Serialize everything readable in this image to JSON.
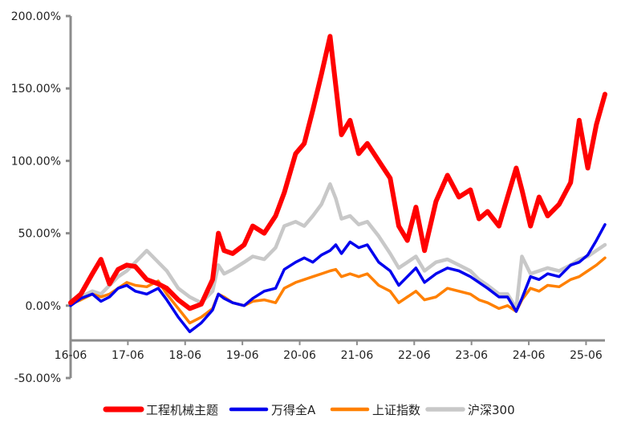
{
  "chart_data": {
    "type": "line",
    "title": "",
    "xlabel": "",
    "ylabel": "",
    "ylim": [
      -0.5,
      2.0
    ],
    "y_ticks": [
      2.0,
      1.5,
      1.0,
      0.5,
      0.0,
      -0.5
    ],
    "y_tick_labels": [
      "200.00%",
      "150.00%",
      "100.00%",
      "50.00%",
      "0.00%",
      "-50.00%"
    ],
    "x_tick_labels": [
      "16-06",
      "17-06",
      "18-06",
      "19-06",
      "20-06",
      "21-06",
      "22-06",
      "23-06",
      "24-06",
      "25-06"
    ],
    "x_ticks": [
      2016.42,
      2017.42,
      2018.42,
      2019.42,
      2020.42,
      2021.42,
      2022.42,
      2023.42,
      2024.42,
      2025.42
    ],
    "xlim": [
      2016.42,
      2025.75
    ],
    "x_axis_crosses_y": -0.24,
    "grid": false,
    "legend_position": "bottom",
    "series": [
      {
        "name": "工程机械主题",
        "color": "#ff0000",
        "x": [
          2016.42,
          2016.6,
          2016.8,
          2016.95,
          2017.1,
          2017.25,
          2017.4,
          2017.55,
          2017.75,
          2017.95,
          2018.1,
          2018.3,
          2018.5,
          2018.7,
          2018.9,
          2019.0,
          2019.1,
          2019.25,
          2019.45,
          2019.6,
          2019.8,
          2020.0,
          2020.15,
          2020.35,
          2020.5,
          2020.65,
          2020.8,
          2020.95,
          2021.05,
          2021.15,
          2021.3,
          2021.45,
          2021.6,
          2021.8,
          2022.0,
          2022.15,
          2022.3,
          2022.45,
          2022.6,
          2022.8,
          2023.0,
          2023.2,
          2023.4,
          2023.55,
          2023.7,
          2023.9,
          2024.05,
          2024.2,
          2024.3,
          2024.45,
          2024.6,
          2024.75,
          2024.95,
          2025.15,
          2025.3,
          2025.45,
          2025.6,
          2025.75
        ],
        "values": [
          0.02,
          0.08,
          0.22,
          0.32,
          0.15,
          0.25,
          0.28,
          0.27,
          0.18,
          0.15,
          0.12,
          0.04,
          -0.02,
          0.01,
          0.18,
          0.5,
          0.38,
          0.36,
          0.42,
          0.55,
          0.5,
          0.62,
          0.78,
          1.05,
          1.12,
          1.35,
          1.6,
          1.86,
          1.52,
          1.18,
          1.28,
          1.05,
          1.12,
          1.0,
          0.88,
          0.55,
          0.45,
          0.68,
          0.38,
          0.72,
          0.9,
          0.75,
          0.8,
          0.6,
          0.65,
          0.55,
          0.75,
          0.95,
          0.8,
          0.55,
          0.75,
          0.62,
          0.7,
          0.85,
          1.28,
          0.95,
          1.25,
          1.46
        ]
      },
      {
        "name": "万得全A",
        "color": "#0000ee",
        "x": [
          2016.42,
          2016.6,
          2016.8,
          2016.95,
          2017.1,
          2017.25,
          2017.4,
          2017.55,
          2017.75,
          2017.95,
          2018.1,
          2018.3,
          2018.5,
          2018.7,
          2018.9,
          2019.0,
          2019.1,
          2019.25,
          2019.45,
          2019.6,
          2019.8,
          2020.0,
          2020.15,
          2020.35,
          2020.5,
          2020.65,
          2020.8,
          2020.95,
          2021.05,
          2021.15,
          2021.3,
          2021.45,
          2021.6,
          2021.8,
          2022.0,
          2022.15,
          2022.3,
          2022.45,
          2022.6,
          2022.8,
          2023.0,
          2023.2,
          2023.4,
          2023.55,
          2023.7,
          2023.9,
          2024.05,
          2024.2,
          2024.3,
          2024.45,
          2024.6,
          2024.75,
          2024.95,
          2025.15,
          2025.3,
          2025.45,
          2025.6,
          2025.75
        ],
        "values": [
          0.0,
          0.05,
          0.08,
          0.03,
          0.06,
          0.12,
          0.14,
          0.1,
          0.08,
          0.12,
          0.04,
          -0.08,
          -0.18,
          -0.12,
          -0.03,
          0.08,
          0.05,
          0.02,
          0.0,
          0.05,
          0.1,
          0.12,
          0.25,
          0.3,
          0.33,
          0.3,
          0.35,
          0.38,
          0.42,
          0.36,
          0.44,
          0.4,
          0.42,
          0.3,
          0.24,
          0.14,
          0.2,
          0.26,
          0.16,
          0.22,
          0.26,
          0.24,
          0.2,
          0.16,
          0.12,
          0.06,
          0.06,
          -0.04,
          0.05,
          0.2,
          0.18,
          0.22,
          0.2,
          0.28,
          0.3,
          0.35,
          0.45,
          0.56
        ]
      },
      {
        "name": "上证指数",
        "color": "#ff8000",
        "x": [
          2016.42,
          2016.6,
          2016.8,
          2016.95,
          2017.1,
          2017.25,
          2017.4,
          2017.55,
          2017.75,
          2017.95,
          2018.1,
          2018.3,
          2018.5,
          2018.7,
          2018.9,
          2019.0,
          2019.1,
          2019.25,
          2019.45,
          2019.6,
          2019.8,
          2020.0,
          2020.15,
          2020.35,
          2020.5,
          2020.65,
          2020.8,
          2020.95,
          2021.05,
          2021.15,
          2021.3,
          2021.45,
          2021.6,
          2021.8,
          2022.0,
          2022.15,
          2022.3,
          2022.45,
          2022.6,
          2022.8,
          2023.0,
          2023.2,
          2023.4,
          2023.55,
          2023.7,
          2023.9,
          2024.05,
          2024.2,
          2024.3,
          2024.45,
          2024.6,
          2024.75,
          2024.95,
          2025.15,
          2025.3,
          2025.45,
          2025.6,
          2025.75
        ],
        "values": [
          0.01,
          0.04,
          0.08,
          0.06,
          0.08,
          0.12,
          0.16,
          0.14,
          0.13,
          0.17,
          0.08,
          -0.02,
          -0.12,
          -0.08,
          -0.02,
          0.08,
          0.06,
          0.02,
          0.0,
          0.03,
          0.04,
          0.02,
          0.12,
          0.16,
          0.18,
          0.2,
          0.22,
          0.24,
          0.25,
          0.2,
          0.22,
          0.2,
          0.22,
          0.14,
          0.1,
          0.02,
          0.06,
          0.1,
          0.04,
          0.06,
          0.12,
          0.1,
          0.08,
          0.04,
          0.02,
          -0.02,
          0.0,
          -0.04,
          0.04,
          0.12,
          0.1,
          0.14,
          0.13,
          0.18,
          0.2,
          0.24,
          0.28,
          0.33
        ]
      },
      {
        "name": "沪深300",
        "color": "#c8c8c8",
        "x": [
          2016.42,
          2016.6,
          2016.8,
          2016.95,
          2017.1,
          2017.25,
          2017.4,
          2017.55,
          2017.75,
          2017.95,
          2018.1,
          2018.3,
          2018.5,
          2018.7,
          2018.9,
          2019.0,
          2019.1,
          2019.25,
          2019.45,
          2019.6,
          2019.8,
          2020.0,
          2020.15,
          2020.35,
          2020.5,
          2020.65,
          2020.8,
          2020.95,
          2021.05,
          2021.15,
          2021.3,
          2021.45,
          2021.6,
          2021.8,
          2022.0,
          2022.15,
          2022.3,
          2022.45,
          2022.6,
          2022.8,
          2023.0,
          2023.2,
          2023.4,
          2023.55,
          2023.7,
          2023.9,
          2024.05,
          2024.2,
          2024.3,
          2024.45,
          2024.6,
          2024.75,
          2024.95,
          2025.15,
          2025.3,
          2025.45,
          2025.6,
          2025.75
        ],
        "values": [
          0.02,
          0.06,
          0.1,
          0.08,
          0.14,
          0.2,
          0.24,
          0.3,
          0.38,
          0.3,
          0.24,
          0.12,
          0.06,
          0.02,
          0.1,
          0.28,
          0.22,
          0.25,
          0.3,
          0.34,
          0.32,
          0.4,
          0.55,
          0.58,
          0.55,
          0.62,
          0.7,
          0.84,
          0.74,
          0.6,
          0.62,
          0.56,
          0.58,
          0.48,
          0.36,
          0.26,
          0.3,
          0.34,
          0.24,
          0.3,
          0.32,
          0.28,
          0.24,
          0.18,
          0.14,
          0.08,
          0.08,
          -0.02,
          0.34,
          0.22,
          0.24,
          0.26,
          0.24,
          0.28,
          0.32,
          0.34,
          0.38,
          0.42
        ]
      }
    ]
  }
}
